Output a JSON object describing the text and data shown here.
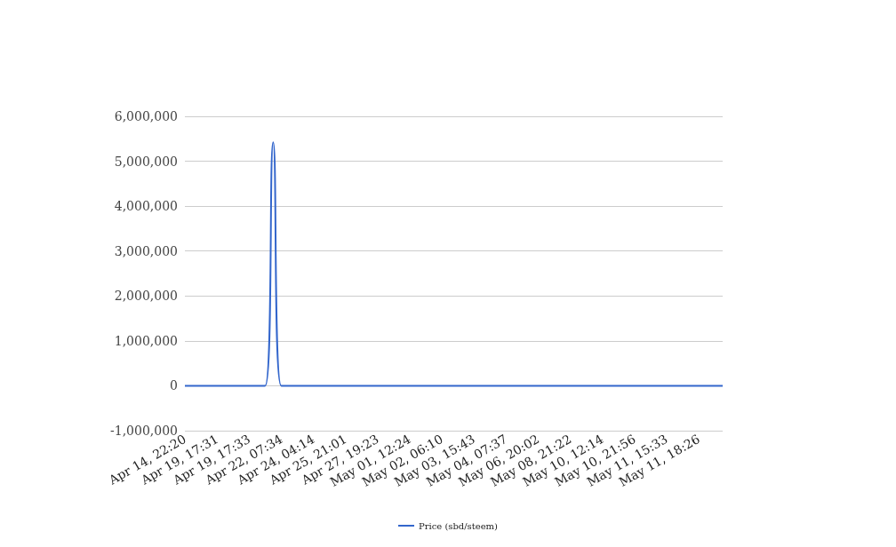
{
  "chart_data": {
    "type": "line",
    "categories": [
      "Apr 14, 22:20",
      null,
      null,
      null,
      "Apr 19, 17:31",
      null,
      null,
      null,
      "Apr 19, 17:33",
      null,
      null,
      null,
      "Apr 22, 07:34",
      null,
      null,
      null,
      "Apr 24, 04:14",
      null,
      null,
      null,
      "Apr 25, 21:01",
      null,
      null,
      null,
      "Apr 27, 19:23",
      null,
      null,
      null,
      "May 01, 12:24",
      null,
      null,
      null,
      "May 02, 06:10",
      null,
      null,
      null,
      "May 03, 15:43",
      null,
      null,
      null,
      "May 04, 07:37",
      null,
      null,
      null,
      "May 06, 20:02",
      null,
      null,
      null,
      "May 08, 21:22",
      null,
      null,
      null,
      "May 10, 12:14",
      null,
      null,
      null,
      "May 10, 21:56",
      null,
      null,
      null,
      "May 11, 15:33",
      null,
      null,
      null,
      "May 11, 18:26",
      null,
      null,
      null
    ],
    "series": [
      {
        "name": "Price (sbd/steem)",
        "color": "#3366cc",
        "values": [
          0,
          0,
          0,
          0,
          0,
          0,
          0,
          0,
          0,
          0,
          0,
          5420000,
          0,
          0,
          0,
          0,
          0,
          0,
          0,
          0,
          0,
          0,
          0,
          0,
          0,
          0,
          0,
          0,
          0,
          0,
          0,
          0,
          0,
          0,
          0,
          0,
          0,
          0,
          0,
          0,
          0,
          0,
          0,
          0,
          0,
          0,
          0,
          0,
          0,
          0,
          0,
          0,
          0,
          0,
          0,
          0,
          0,
          0,
          0,
          0,
          0,
          0,
          0,
          0,
          0,
          0,
          0,
          0
        ]
      }
    ],
    "ylim": [
      -1000000,
      6000000
    ],
    "yticks": [
      {
        "value": -1000000,
        "label": "-1,000,000"
      },
      0,
      {
        "value": 1000000,
        "label": "1,000,000"
      },
      {
        "value": 2000000,
        "label": "2,000,000"
      },
      {
        "value": 3000000,
        "label": "3,000,000"
      },
      {
        "value": 4000000,
        "label": "4,000,000"
      },
      {
        "value": 5000000,
        "label": "5,000,000"
      },
      {
        "value": 6000000,
        "label": "6,000,000"
      }
    ],
    "grid": "y",
    "legend": "bottom"
  }
}
